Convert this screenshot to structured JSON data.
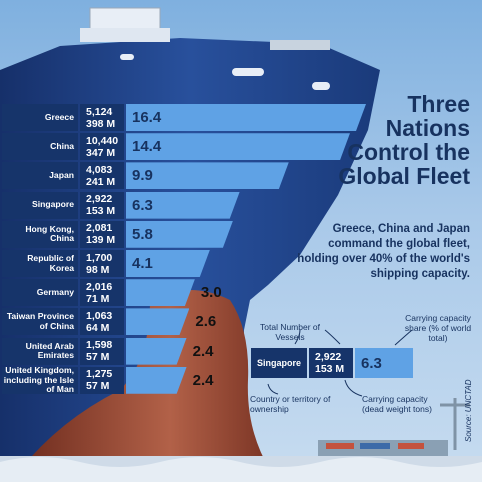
{
  "title": "Three Nations Control the Global Fleet",
  "subtitle": "Greece, China and Japan command the global fleet, holding over 40% of the world's shipping capacity.",
  "legend": {
    "example_country": "Singapore",
    "example_vessels": "2,922",
    "example_capacity": "153 M",
    "example_share": "6.3",
    "label_vessels": "Total Number of Vessels",
    "label_share": "Carrying capacity share (% of world total)",
    "label_country": "Country or territory of ownership",
    "label_capacity": "Carrying capacity (dead weight tons)"
  },
  "source": "Source: UNCTAD",
  "colors": {
    "navy": "#16346a",
    "bar": "#5fa2e5",
    "text_dark": "#17325f",
    "hull": "#1f3f86",
    "bow": "#8a3b2b"
  },
  "chart_data": {
    "type": "bar",
    "orientation": "horizontal",
    "rows": [
      {
        "country": "Greece",
        "vessels": "5,124",
        "capacity": "398 M",
        "share": 16.4
      },
      {
        "country": "China",
        "vessels": "10,440",
        "capacity": "347 M",
        "share": 14.4
      },
      {
        "country": "Japan",
        "vessels": "4,083",
        "capacity": "241 M",
        "share": 9.9
      },
      {
        "country": "Singapore",
        "vessels": "2,922",
        "capacity": "153 M",
        "share": 6.3
      },
      {
        "country": "Hong Kong, China",
        "vessels": "2,081",
        "capacity": "139 M",
        "share": 5.8
      },
      {
        "country": "Republic of Korea",
        "vessels": "1,700",
        "capacity": "98 M",
        "share": 4.1
      },
      {
        "country": "Germany",
        "vessels": "2,016",
        "capacity": "71 M",
        "share": 3.0
      },
      {
        "country": "Taiwan Province of China",
        "vessels": "1,063",
        "capacity": "64 M",
        "share": 2.6
      },
      {
        "country": "United Arab Emirates",
        "vessels": "1,598",
        "capacity": "57 M",
        "share": 2.4
      },
      {
        "country": "United Kingdom, including the Isle of Man",
        "vessels": "1,275",
        "capacity": "57 M",
        "share": 2.4
      }
    ]
  }
}
